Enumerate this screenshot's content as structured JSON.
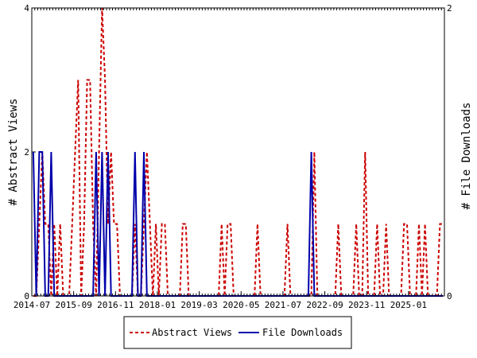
{
  "chart_data": {
    "type": "line",
    "xlabel": "",
    "ylabel_left": "# Abstract Views",
    "ylabel_right": "# File Downloads",
    "ylim_left": [
      0,
      4
    ],
    "ylim_right": [
      0,
      2
    ],
    "yticks_left": [
      "0",
      "2",
      "4"
    ],
    "yticks_right": [
      "0",
      "2"
    ],
    "x_range": [
      "2014-07",
      "2025-12"
    ],
    "x_tick_labels": [
      "2014-07",
      "2015-09",
      "2016-11",
      "2018-01",
      "2019-03",
      "2020-05",
      "2021-07",
      "2022-09",
      "2023-11",
      "2025-01"
    ],
    "grid": false,
    "legend_position": "bottom",
    "series": [
      {
        "name": "Abstract Views",
        "axis": "left",
        "color": "#cc0000",
        "style": "dashed",
        "points": [
          [
            "2014-07",
            0
          ],
          [
            "2014-08",
            0
          ],
          [
            "2014-09",
            1
          ],
          [
            "2014-10",
            2
          ],
          [
            "2014-11",
            1
          ],
          [
            "2014-12",
            1
          ],
          [
            "2015-01",
            0
          ],
          [
            "2015-02",
            1
          ],
          [
            "2015-03",
            0
          ],
          [
            "2015-04",
            1
          ],
          [
            "2015-05",
            0
          ],
          [
            "2015-06",
            0
          ],
          [
            "2015-07",
            0
          ],
          [
            "2015-08",
            1
          ],
          [
            "2015-09",
            2
          ],
          [
            "2015-10",
            3
          ],
          [
            "2015-11",
            0
          ],
          [
            "2015-12",
            1
          ],
          [
            "2016-01",
            3
          ],
          [
            "2016-02",
            3
          ],
          [
            "2016-03",
            1
          ],
          [
            "2016-04",
            0
          ],
          [
            "2016-05",
            2
          ],
          [
            "2016-06",
            4
          ],
          [
            "2016-07",
            3
          ],
          [
            "2016-08",
            1
          ],
          [
            "2016-09",
            2
          ],
          [
            "2016-10",
            1
          ],
          [
            "2016-11",
            1
          ],
          [
            "2016-12",
            0
          ],
          [
            "2017-01",
            0
          ],
          [
            "2017-02",
            0
          ],
          [
            "2017-03",
            0
          ],
          [
            "2017-04",
            0
          ],
          [
            "2017-05",
            1
          ],
          [
            "2017-06",
            0
          ],
          [
            "2017-07",
            0
          ],
          [
            "2017-08",
            1
          ],
          [
            "2017-09",
            2
          ],
          [
            "2017-10",
            1
          ],
          [
            "2017-11",
            0
          ],
          [
            "2017-12",
            1
          ],
          [
            "2018-01",
            0
          ],
          [
            "2018-02",
            1
          ],
          [
            "2018-03",
            1
          ],
          [
            "2018-04",
            0
          ],
          [
            "2018-05",
            0
          ],
          [
            "2018-06",
            0
          ],
          [
            "2018-07",
            0
          ],
          [
            "2018-08",
            0
          ],
          [
            "2018-09",
            1
          ],
          [
            "2018-10",
            1
          ],
          [
            "2018-11",
            0
          ],
          [
            "2018-12",
            0
          ],
          [
            "2019-01",
            0
          ],
          [
            "2019-02",
            0
          ],
          [
            "2019-03",
            0
          ],
          [
            "2019-04",
            0
          ],
          [
            "2019-05",
            0
          ],
          [
            "2019-06",
            0
          ],
          [
            "2019-07",
            0
          ],
          [
            "2019-08",
            0
          ],
          [
            "2019-09",
            0
          ],
          [
            "2019-10",
            1
          ],
          [
            "2019-11",
            0
          ],
          [
            "2019-12",
            1
          ],
          [
            "2020-01",
            1
          ],
          [
            "2020-02",
            0
          ],
          [
            "2020-03",
            0
          ],
          [
            "2020-04",
            0
          ],
          [
            "2020-05",
            0
          ],
          [
            "2020-06",
            0
          ],
          [
            "2020-07",
            0
          ],
          [
            "2020-08",
            0
          ],
          [
            "2020-09",
            0
          ],
          [
            "2020-10",
            1
          ],
          [
            "2020-11",
            0
          ],
          [
            "2020-12",
            0
          ],
          [
            "2021-01",
            0
          ],
          [
            "2021-02",
            0
          ],
          [
            "2021-03",
            0
          ],
          [
            "2021-04",
            0
          ],
          [
            "2021-05",
            0
          ],
          [
            "2021-06",
            0
          ],
          [
            "2021-07",
            0
          ],
          [
            "2021-08",
            1
          ],
          [
            "2021-09",
            0
          ],
          [
            "2021-10",
            0
          ],
          [
            "2021-11",
            0
          ],
          [
            "2021-12",
            0
          ],
          [
            "2022-01",
            0
          ],
          [
            "2022-02",
            0
          ],
          [
            "2022-03",
            0
          ],
          [
            "2022-04",
            0
          ],
          [
            "2022-05",
            2
          ],
          [
            "2022-06",
            0
          ],
          [
            "2022-07",
            0
          ],
          [
            "2022-08",
            0
          ],
          [
            "2022-09",
            0
          ],
          [
            "2022-10",
            0
          ],
          [
            "2022-11",
            0
          ],
          [
            "2022-12",
            0
          ],
          [
            "2023-01",
            1
          ],
          [
            "2023-02",
            0
          ],
          [
            "2023-03",
            0
          ],
          [
            "2023-04",
            0
          ],
          [
            "2023-05",
            0
          ],
          [
            "2023-06",
            0
          ],
          [
            "2023-07",
            1
          ],
          [
            "2023-08",
            0
          ],
          [
            "2023-09",
            0
          ],
          [
            "2023-10",
            2
          ],
          [
            "2023-11",
            0
          ],
          [
            "2023-12",
            0
          ],
          [
            "2024-01",
            0
          ],
          [
            "2024-02",
            1
          ],
          [
            "2024-03",
            0
          ],
          [
            "2024-04",
            0
          ],
          [
            "2024-05",
            1
          ],
          [
            "2024-06",
            0
          ],
          [
            "2024-07",
            0
          ],
          [
            "2024-08",
            0
          ],
          [
            "2024-09",
            0
          ],
          [
            "2024-10",
            0
          ],
          [
            "2024-11",
            1
          ],
          [
            "2024-12",
            1
          ],
          [
            "2025-01",
            0
          ],
          [
            "2025-02",
            0
          ],
          [
            "2025-03",
            0
          ],
          [
            "2025-04",
            1
          ],
          [
            "2025-05",
            0
          ],
          [
            "2025-06",
            1
          ],
          [
            "2025-07",
            0
          ],
          [
            "2025-08",
            0
          ],
          [
            "2025-09",
            0
          ],
          [
            "2025-10",
            0
          ],
          [
            "2025-11",
            1
          ],
          [
            "2025-12",
            1
          ]
        ]
      },
      {
        "name": "File Downloads",
        "axis": "right",
        "color": "#0000aa",
        "style": "solid",
        "points": [
          [
            "2014-07",
            1
          ],
          [
            "2014-08",
            0
          ],
          [
            "2014-09",
            1
          ],
          [
            "2014-10",
            1
          ],
          [
            "2014-11",
            0
          ],
          [
            "2014-12",
            0
          ],
          [
            "2015-01",
            1
          ],
          [
            "2015-02",
            0
          ],
          [
            "2015-03",
            0
          ],
          [
            "2015-04",
            0
          ],
          [
            "2015-05",
            0
          ],
          [
            "2015-06",
            0
          ],
          [
            "2015-07",
            0
          ],
          [
            "2015-08",
            0
          ],
          [
            "2015-09",
            0
          ],
          [
            "2015-10",
            0
          ],
          [
            "2015-11",
            0
          ],
          [
            "2015-12",
            0
          ],
          [
            "2016-01",
            0
          ],
          [
            "2016-02",
            0
          ],
          [
            "2016-03",
            0
          ],
          [
            "2016-04",
            1
          ],
          [
            "2016-05",
            0
          ],
          [
            "2016-06",
            1
          ],
          [
            "2016-07",
            0
          ],
          [
            "2016-08",
            1
          ],
          [
            "2016-09",
            0
          ],
          [
            "2016-10",
            0
          ],
          [
            "2016-11",
            0
          ],
          [
            "2016-12",
            0
          ],
          [
            "2017-01",
            0
          ],
          [
            "2017-02",
            0
          ],
          [
            "2017-03",
            0
          ],
          [
            "2017-04",
            0
          ],
          [
            "2017-05",
            1
          ],
          [
            "2017-06",
            0
          ],
          [
            "2017-07",
            0
          ],
          [
            "2017-08",
            1
          ],
          [
            "2017-09",
            0
          ],
          [
            "2017-10",
            0
          ],
          [
            "2017-11",
            0
          ],
          [
            "2017-12",
            0
          ],
          [
            "2018-01",
            0
          ],
          [
            "2018-02",
            0
          ],
          [
            "2018-03",
            0
          ],
          [
            "2018-04",
            0
          ],
          [
            "2018-05",
            0
          ],
          [
            "2018-06",
            0
          ],
          [
            "2018-07",
            0
          ],
          [
            "2018-08",
            0
          ],
          [
            "2018-09",
            0
          ],
          [
            "2018-10",
            0
          ],
          [
            "2018-11",
            0
          ],
          [
            "2018-12",
            0
          ],
          [
            "2019-01",
            0
          ],
          [
            "2019-02",
            0
          ],
          [
            "2019-03",
            0
          ],
          [
            "2019-04",
            0
          ],
          [
            "2019-05",
            0
          ],
          [
            "2019-06",
            0
          ],
          [
            "2019-07",
            0
          ],
          [
            "2019-08",
            0
          ],
          [
            "2019-09",
            0
          ],
          [
            "2019-10",
            0
          ],
          [
            "2019-11",
            0
          ],
          [
            "2019-12",
            0
          ],
          [
            "2020-01",
            0
          ],
          [
            "2020-02",
            0
          ],
          [
            "2020-03",
            0
          ],
          [
            "2020-04",
            0
          ],
          [
            "2020-05",
            0
          ],
          [
            "2020-06",
            0
          ],
          [
            "2020-07",
            0
          ],
          [
            "2020-08",
            0
          ],
          [
            "2020-09",
            0
          ],
          [
            "2020-10",
            0
          ],
          [
            "2020-11",
            0
          ],
          [
            "2020-12",
            0
          ],
          [
            "2021-01",
            0
          ],
          [
            "2021-02",
            0
          ],
          [
            "2021-03",
            0
          ],
          [
            "2021-04",
            0
          ],
          [
            "2021-05",
            0
          ],
          [
            "2021-06",
            0
          ],
          [
            "2021-07",
            0
          ],
          [
            "2021-08",
            0
          ],
          [
            "2021-09",
            0
          ],
          [
            "2021-10",
            0
          ],
          [
            "2021-11",
            0
          ],
          [
            "2021-12",
            0
          ],
          [
            "2022-01",
            0
          ],
          [
            "2022-02",
            0
          ],
          [
            "2022-03",
            0
          ],
          [
            "2022-04",
            1
          ],
          [
            "2022-05",
            0
          ],
          [
            "2022-06",
            0
          ],
          [
            "2022-07",
            0
          ],
          [
            "2022-08",
            0
          ],
          [
            "2022-09",
            0
          ],
          [
            "2022-10",
            0
          ],
          [
            "2022-11",
            0
          ],
          [
            "2022-12",
            0
          ],
          [
            "2023-01",
            0
          ],
          [
            "2023-02",
            0
          ],
          [
            "2023-03",
            0
          ],
          [
            "2023-04",
            0
          ],
          [
            "2023-05",
            0
          ],
          [
            "2023-06",
            0
          ],
          [
            "2023-07",
            0
          ],
          [
            "2023-08",
            0
          ],
          [
            "2023-09",
            0
          ],
          [
            "2023-10",
            0
          ],
          [
            "2023-11",
            0
          ],
          [
            "2023-12",
            0
          ],
          [
            "2024-01",
            0
          ],
          [
            "2024-02",
            0
          ],
          [
            "2024-03",
            0
          ],
          [
            "2024-04",
            0
          ],
          [
            "2024-05",
            0
          ],
          [
            "2024-06",
            0
          ],
          [
            "2024-07",
            0
          ],
          [
            "2024-08",
            0
          ],
          [
            "2024-09",
            0
          ],
          [
            "2024-10",
            0
          ],
          [
            "2024-11",
            0
          ],
          [
            "2024-12",
            0
          ],
          [
            "2025-01",
            0
          ],
          [
            "2025-02",
            0
          ],
          [
            "2025-03",
            0
          ],
          [
            "2025-04",
            0
          ],
          [
            "2025-05",
            0
          ],
          [
            "2025-06",
            0
          ],
          [
            "2025-07",
            0
          ],
          [
            "2025-08",
            0
          ],
          [
            "2025-09",
            0
          ],
          [
            "2025-10",
            0
          ],
          [
            "2025-11",
            0
          ],
          [
            "2025-12",
            0
          ]
        ]
      }
    ]
  }
}
